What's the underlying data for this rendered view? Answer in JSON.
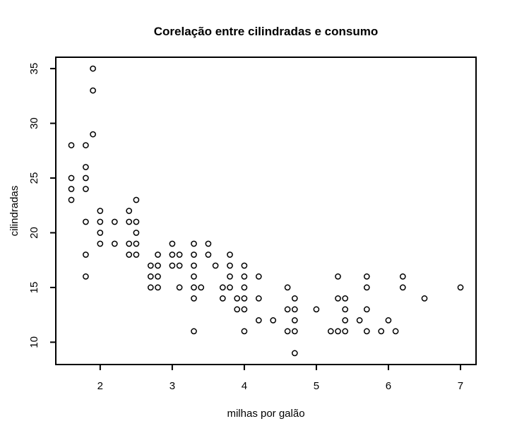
{
  "figure": {
    "background": "#ffffff",
    "foreground": "#000000"
  },
  "chart_data": {
    "type": "scatter",
    "title": "Corelação entre cilindradas e consumo",
    "xlabel": "milhas por galão",
    "ylabel": "cilindradas",
    "xlim": [
      1.384,
      7.216
    ],
    "ylim": [
      7.96,
      36.04
    ],
    "xticks": [
      2,
      3,
      4,
      5,
      6,
      7
    ],
    "yticks": [
      10,
      15,
      20,
      25,
      30,
      35
    ],
    "grid": false,
    "legend": null,
    "marker": "open-circle",
    "marker_color": "#000000",
    "points": [
      [
        1.6,
        23
      ],
      [
        1.6,
        24
      ],
      [
        1.6,
        25
      ],
      [
        1.6,
        28
      ],
      [
        1.8,
        16
      ],
      [
        1.8,
        18
      ],
      [
        1.8,
        21
      ],
      [
        1.8,
        24
      ],
      [
        1.8,
        25
      ],
      [
        1.8,
        26
      ],
      [
        1.8,
        28
      ],
      [
        1.9,
        29
      ],
      [
        1.9,
        33
      ],
      [
        1.9,
        35
      ],
      [
        2.0,
        19
      ],
      [
        2.0,
        20
      ],
      [
        2.0,
        21
      ],
      [
        2.0,
        22
      ],
      [
        2.2,
        19
      ],
      [
        2.2,
        21
      ],
      [
        2.4,
        18
      ],
      [
        2.4,
        19
      ],
      [
        2.4,
        21
      ],
      [
        2.4,
        22
      ],
      [
        2.5,
        18
      ],
      [
        2.5,
        19
      ],
      [
        2.5,
        20
      ],
      [
        2.5,
        21
      ],
      [
        2.5,
        23
      ],
      [
        2.7,
        15
      ],
      [
        2.7,
        16
      ],
      [
        2.7,
        17
      ],
      [
        2.8,
        15
      ],
      [
        2.8,
        16
      ],
      [
        2.8,
        17
      ],
      [
        2.8,
        18
      ],
      [
        3.0,
        17
      ],
      [
        3.0,
        18
      ],
      [
        3.0,
        19
      ],
      [
        3.1,
        15
      ],
      [
        3.1,
        17
      ],
      [
        3.1,
        18
      ],
      [
        3.3,
        11
      ],
      [
        3.3,
        14
      ],
      [
        3.3,
        15
      ],
      [
        3.3,
        16
      ],
      [
        3.3,
        17
      ],
      [
        3.3,
        18
      ],
      [
        3.3,
        19
      ],
      [
        3.4,
        15
      ],
      [
        3.5,
        18
      ],
      [
        3.5,
        19
      ],
      [
        3.6,
        17
      ],
      [
        3.7,
        14
      ],
      [
        3.7,
        15
      ],
      [
        3.8,
        15
      ],
      [
        3.8,
        16
      ],
      [
        3.8,
        17
      ],
      [
        3.8,
        18
      ],
      [
        3.9,
        13
      ],
      [
        3.9,
        14
      ],
      [
        4.0,
        11
      ],
      [
        4.0,
        13
      ],
      [
        4.0,
        14
      ],
      [
        4.0,
        15
      ],
      [
        4.0,
        16
      ],
      [
        4.0,
        17
      ],
      [
        4.2,
        12
      ],
      [
        4.2,
        14
      ],
      [
        4.2,
        16
      ],
      [
        4.4,
        12
      ],
      [
        4.6,
        11
      ],
      [
        4.6,
        13
      ],
      [
        4.6,
        15
      ],
      [
        4.7,
        9
      ],
      [
        4.7,
        11
      ],
      [
        4.7,
        12
      ],
      [
        4.7,
        13
      ],
      [
        4.7,
        14
      ],
      [
        5.0,
        13
      ],
      [
        5.2,
        11
      ],
      [
        5.3,
        11
      ],
      [
        5.3,
        14
      ],
      [
        5.3,
        16
      ],
      [
        5.4,
        11
      ],
      [
        5.4,
        12
      ],
      [
        5.4,
        13
      ],
      [
        5.4,
        14
      ],
      [
        5.6,
        12
      ],
      [
        5.7,
        11
      ],
      [
        5.7,
        13
      ],
      [
        5.7,
        15
      ],
      [
        5.7,
        16
      ],
      [
        5.9,
        11
      ],
      [
        6.0,
        12
      ],
      [
        6.1,
        11
      ],
      [
        6.2,
        15
      ],
      [
        6.2,
        16
      ],
      [
        6.5,
        14
      ],
      [
        7.0,
        15
      ]
    ]
  }
}
